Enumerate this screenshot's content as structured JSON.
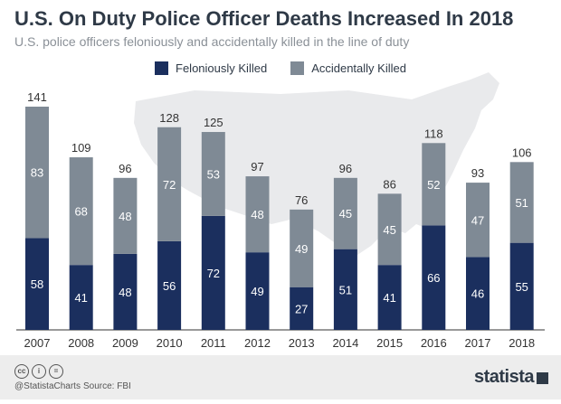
{
  "header": {
    "title": "U.S. On Duty Police Officer Deaths Increased In 2018",
    "subtitle": "U.S. police officers feloniously and accidentally killed in the line of duty"
  },
  "legend": [
    {
      "label": "Feloniously Killed",
      "color": "#1b2f5e"
    },
    {
      "label": "Accidentally Killed",
      "color": "#7f8a95"
    }
  ],
  "chart_data": {
    "type": "bar",
    "stacked": true,
    "categories": [
      "2007",
      "2008",
      "2009",
      "2010",
      "2011",
      "2012",
      "2013",
      "2014",
      "2015",
      "2016",
      "2017",
      "2018"
    ],
    "series": [
      {
        "name": "Feloniously Killed",
        "color": "#1b2f5e",
        "values": [
          58,
          41,
          48,
          56,
          72,
          49,
          27,
          51,
          41,
          66,
          46,
          55
        ]
      },
      {
        "name": "Accidentally Killed",
        "color": "#7f8a95",
        "values": [
          83,
          68,
          48,
          72,
          53,
          48,
          49,
          45,
          45,
          52,
          47,
          51
        ]
      }
    ],
    "totals": [
      141,
      109,
      96,
      128,
      125,
      97,
      76,
      96,
      86,
      118,
      93,
      106
    ],
    "title": "U.S. On Duty Police Officer Deaths Increased In 2018",
    "subtitle": "U.S. police officers feloniously and accidentally killed in the line of duty",
    "ylim": [
      0,
      141
    ],
    "grid": false,
    "legend_position": "top-center"
  },
  "footer": {
    "handle": "@StatistaCharts",
    "source": "Source: FBI",
    "brand": "statista"
  }
}
